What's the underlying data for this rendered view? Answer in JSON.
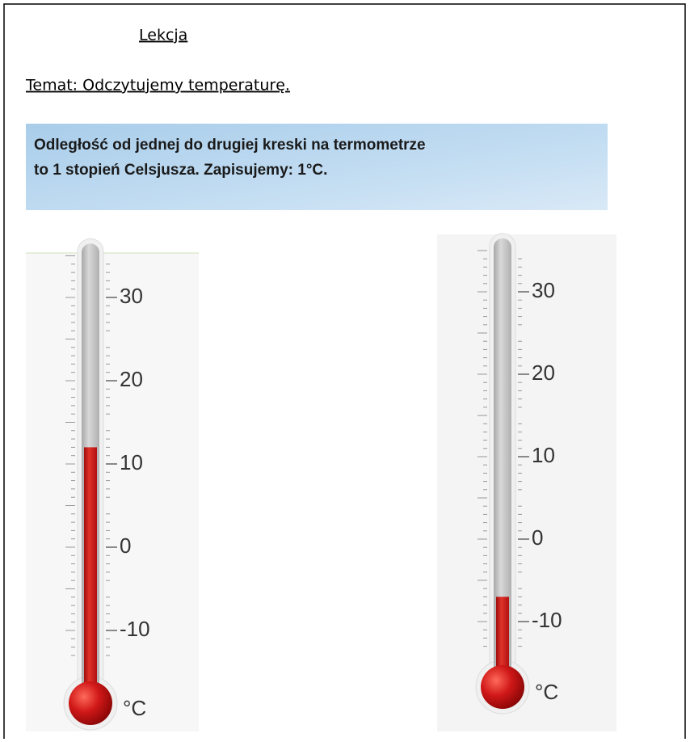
{
  "header": {
    "title": "Lekcja"
  },
  "topic": "Temat: Odczytujemy temperaturę.",
  "info": {
    "lines": [
      "Odległość od jednej do drugiej kreski na termometrze",
      "to 1 stopień Celsjusza. Zapisujemy: 1°C."
    ]
  },
  "thermometers": [
    {
      "ticks": [
        30,
        20,
        10,
        0,
        -10
      ],
      "unit": "°C",
      "value": 12
    },
    {
      "ticks": [
        30,
        20,
        10,
        0,
        -10
      ],
      "unit": "°C",
      "value": -7
    }
  ]
}
